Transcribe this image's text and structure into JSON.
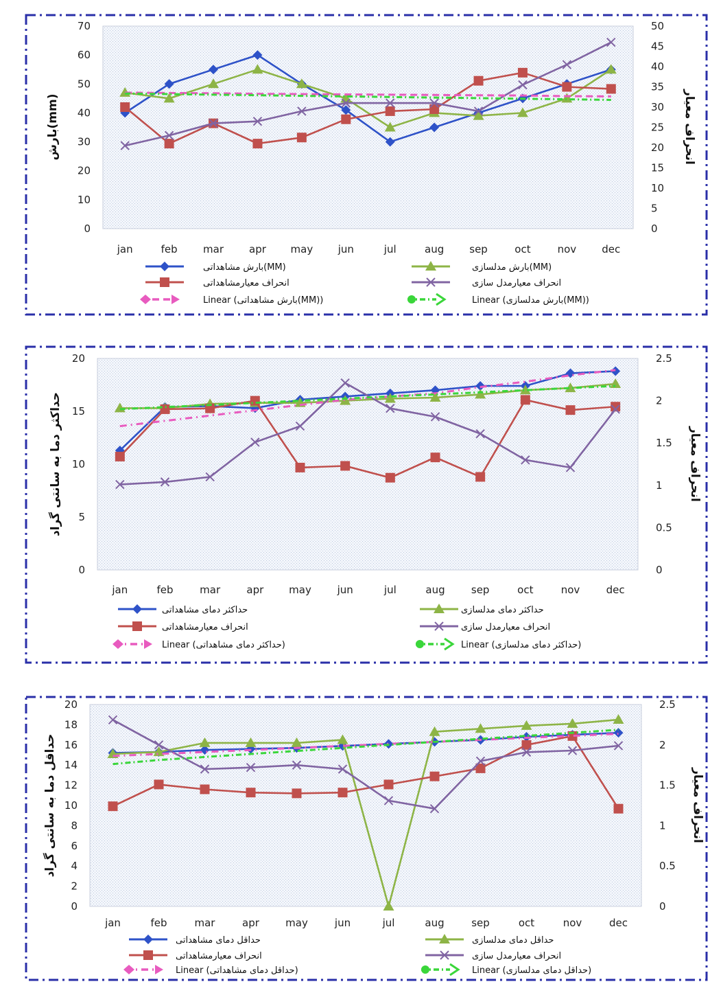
{
  "chart_data": [
    {
      "type": "line",
      "categories": [
        "jan",
        "feb",
        "mar",
        "apr",
        "may",
        "jun",
        "jul",
        "aug",
        "sep",
        "oct",
        "nov",
        "dec"
      ],
      "ylabel": "بارش(mm)",
      "y2label": "انحراف معیار",
      "ylim": [
        0,
        70
      ],
      "y_ticks": [
        0,
        10,
        20,
        30,
        40,
        50,
        60,
        70
      ],
      "y2lim": [
        0,
        50
      ],
      "y2_ticks": [
        0,
        5,
        10,
        15,
        20,
        25,
        30,
        35,
        40,
        45,
        50
      ],
      "series": [
        {
          "name": "بارش مشاهداتی(MM)",
          "axis": "left",
          "color": "#2e52c8",
          "marker": "diamond",
          "values": [
            40,
            50,
            55,
            60,
            50,
            41,
            30,
            35,
            40,
            45,
            50,
            55
          ]
        },
        {
          "name": "بارش مدلسازی(MM)",
          "axis": "left",
          "color": "#8db446",
          "marker": "triangle",
          "values": [
            47,
            45,
            50,
            55,
            50,
            45,
            35,
            40,
            39,
            40,
            45,
            55
          ]
        },
        {
          "name": "انحراف معیارمشاهداتی",
          "axis": "right",
          "color": "#c0504d",
          "marker": "square",
          "values": [
            30,
            21,
            26,
            21,
            22.5,
            27,
            29,
            29.5,
            36.5,
            38.5,
            35,
            34.5
          ]
        },
        {
          "name": "انحراف معیارمدل سازی",
          "axis": "right",
          "color": "#8064a2",
          "marker": "x",
          "values": [
            20.5,
            23,
            26,
            26.5,
            29,
            31,
            31,
            31,
            29,
            35.5,
            40.5,
            46
          ]
        },
        {
          "name": "Linear (بارش مشاهداتی(MM))",
          "axis": "left",
          "color": "#e85bbf",
          "dash": "10,6",
          "trend": true,
          "values": [
            47,
            46.9,
            46.8,
            46.6,
            46.5,
            46.4,
            46.3,
            46.2,
            46.1,
            46,
            45.8,
            45.7
          ]
        },
        {
          "name": "Linear (بارش مدلسازی(MM))",
          "axis": "left",
          "color": "#3ad63a",
          "dash": "8,4,2,4",
          "trend": true,
          "values": [
            46.7,
            46.5,
            46.3,
            46.1,
            45.9,
            45.7,
            45.5,
            45.3,
            45.1,
            44.9,
            44.7,
            44.5
          ]
        }
      ],
      "legend_rows": [
        [
          "بارش مشاهداتی(MM)",
          "بارش مدلسازی(MM)"
        ],
        [
          "انحراف معیارمشاهداتی",
          "انحراف معیارمدل سازی"
        ],
        [
          "Linear (بارش مشاهداتی(MM))",
          "Linear (بارش مدلسازی(MM))"
        ]
      ]
    },
    {
      "type": "line",
      "categories": [
        "jan",
        "feb",
        "mar",
        "apr",
        "may",
        "jun",
        "jul",
        "aug",
        "sep",
        "oct",
        "nov",
        "dec"
      ],
      "ylabel": "حداکثر دما به سانتی گراد",
      "y2label": "انحراف معیار",
      "ylim": [
        0,
        20
      ],
      "y_ticks": [
        0,
        5,
        10,
        15,
        20
      ],
      "y2lim": [
        0,
        2.5
      ],
      "y2_ticks": [
        0,
        0.5,
        1,
        1.5,
        2,
        2.5
      ],
      "series": [
        {
          "name": "حداکثر دمای مشاهداتی",
          "axis": "left",
          "color": "#2e52c8",
          "marker": "diamond",
          "values": [
            11.3,
            15.4,
            15.5,
            15.3,
            16.1,
            16.4,
            16.7,
            17,
            17.4,
            17.4,
            18.6,
            18.8
          ]
        },
        {
          "name": "حداکثر دمای مدلسازی",
          "axis": "left",
          "color": "#8db446",
          "marker": "triangle",
          "values": [
            15.3,
            15.3,
            15.7,
            15.8,
            15.8,
            16,
            16.2,
            16.3,
            16.6,
            17,
            17.2,
            17.6
          ]
        },
        {
          "name": "انحراف معیارمشاهداتی",
          "axis": "right",
          "color": "#c0504d",
          "marker": "square",
          "values": [
            1.34,
            1.9,
            1.91,
            2,
            1.21,
            1.23,
            1.09,
            1.33,
            1.1,
            2.01,
            1.89,
            1.93
          ]
        },
        {
          "name": "انحراف معیارمدل سازی",
          "axis": "right",
          "color": "#8064a2",
          "marker": "x",
          "values": [
            1.01,
            1.04,
            1.1,
            1.51,
            1.7,
            2.21,
            1.91,
            1.81,
            1.61,
            1.3,
            1.21,
            1.9
          ]
        },
        {
          "name": "Linear (حداکثر دمای مشاهداتی)",
          "axis": "left",
          "color": "#e85bbf",
          "dash": "10,6,2,6",
          "trend": true,
          "values": [
            13.6,
            14.1,
            14.6,
            15.1,
            15.6,
            16.1,
            16.4,
            16.7,
            17.3,
            17.8,
            18.4,
            18.9
          ]
        },
        {
          "name": "Linear (حداکثر دمای مدلسازی)",
          "axis": "left",
          "color": "#3ad63a",
          "dash": "8,4,2,4",
          "trend": true,
          "values": [
            15.2,
            15.4,
            15.6,
            15.8,
            16,
            16.2,
            16.4,
            16.6,
            16.8,
            17,
            17.2,
            17.4
          ]
        }
      ],
      "legend_rows": [
        [
          "حداکثر دمای مشاهداتی",
          "حداکثر دمای مدلسازی"
        ],
        [
          "انحراف معیارمشاهداتی",
          "انحراف معیارمدل سازی"
        ],
        [
          "Linear (حداکثر دمای مشاهداتی)",
          "Linear (حداکثر دمای مدلسازی)"
        ]
      ]
    },
    {
      "type": "line",
      "categories": [
        "jan",
        "feb",
        "mar",
        "apr",
        "may",
        "jun",
        "jul",
        "aug",
        "sep",
        "oct",
        "nov",
        "dec"
      ],
      "ylabel": "حداقل دما به سانتی گراد",
      "y2label": "انحراف معیار",
      "ylim": [
        0,
        20
      ],
      "y_ticks": [
        0,
        2,
        4,
        6,
        8,
        10,
        12,
        14,
        16,
        18,
        20
      ],
      "y2lim": [
        0,
        2.5
      ],
      "y2_ticks": [
        0,
        0.5,
        1,
        1.5,
        2,
        2.5
      ],
      "series": [
        {
          "name": "حداقل دمای مشاهداتی",
          "axis": "left",
          "color": "#2e52c8",
          "marker": "diamond",
          "values": [
            15.2,
            15.3,
            15.5,
            15.6,
            15.7,
            15.9,
            16.1,
            16.3,
            16.5,
            16.8,
            17,
            17.2
          ]
        },
        {
          "name": "حداقل دمای مدلسازی",
          "axis": "left",
          "color": "#8db446",
          "marker": "triangle",
          "values": [
            15.1,
            15.3,
            16.2,
            16.2,
            16.2,
            16.5,
            0,
            17.3,
            17.6,
            17.9,
            18.1,
            18.5
          ]
        },
        {
          "name": "انحراف معیارمشاهداتی",
          "axis": "right",
          "color": "#c0504d",
          "marker": "square",
          "values": [
            1.24,
            1.51,
            1.45,
            1.41,
            1.4,
            1.41,
            1.51,
            1.61,
            1.71,
            2,
            2.11,
            1.21
          ]
        },
        {
          "name": "انحراف معیارمدل سازی",
          "axis": "right",
          "color": "#8064a2",
          "marker": "x",
          "values": [
            2.31,
            2,
            1.7,
            1.72,
            1.75,
            1.7,
            1.31,
            1.21,
            1.8,
            1.91,
            1.93,
            1.99
          ]
        },
        {
          "name": "Linear (حداقل دمای مشاهداتی)",
          "axis": "left",
          "color": "#e85bbf",
          "dash": "10,6,2,6",
          "trend": true,
          "values": [
            14.9,
            15.1,
            15.3,
            15.5,
            15.7,
            15.9,
            16.1,
            16.3,
            16.5,
            16.7,
            16.9,
            17.1
          ]
        },
        {
          "name": "Linear (حداقل دمای مدلسازی)",
          "axis": "left",
          "color": "#3ad63a",
          "dash": "8,4,2,4",
          "trend": true,
          "values": [
            14.1,
            14.5,
            14.8,
            15.1,
            15.4,
            15.7,
            16,
            16.3,
            16.6,
            16.9,
            17.2,
            17.5
          ]
        }
      ],
      "legend_rows": [
        [
          "حداقل دمای مشاهداتی",
          "حداقل دمای مدلسازی"
        ],
        [
          "انحراف معیارمشاهداتی",
          "انحراف معیارمدل سازی"
        ],
        [
          "Linear (حداقل دمای مشاهداتی)",
          "Linear (حداقل دمای مدلسازی)"
        ]
      ]
    }
  ]
}
